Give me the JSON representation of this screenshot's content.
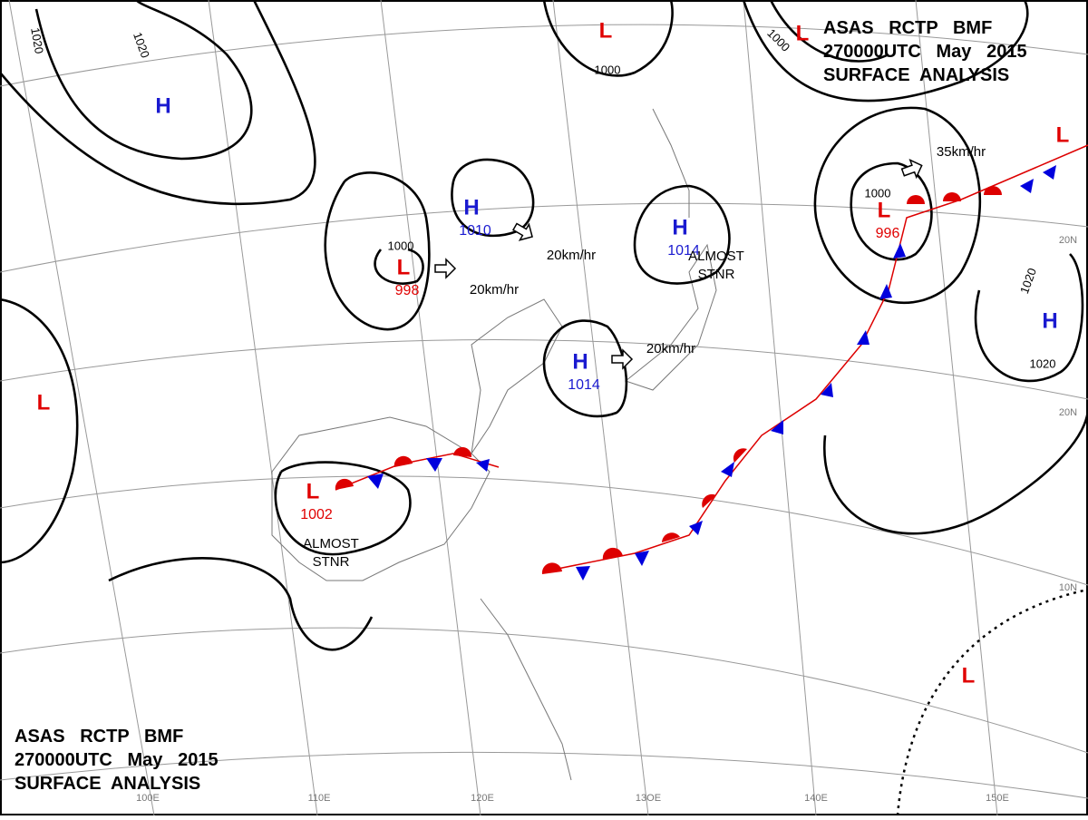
{
  "header": {
    "lines": [
      "ASAS   RCTP   BMF",
      "270000UTC   May   2015",
      "SURFACE  ANALYSIS"
    ]
  },
  "footer": {
    "lines": [
      "ASAS   RCTP   BMF",
      "270000UTC   May   2015",
      "SURFACE  ANALYSIS"
    ]
  },
  "systems": [
    {
      "label": "H"
    },
    {
      "label": "L",
      "value": "998"
    },
    {
      "label": "H",
      "value": "1010"
    },
    {
      "label": "H",
      "value": "1014"
    },
    {
      "label": "H",
      "value": "1014"
    },
    {
      "label": "L",
      "value": "1002"
    },
    {
      "label": "L",
      "value": "996"
    },
    {
      "label": "L"
    },
    {
      "label": "L"
    },
    {
      "label": "L"
    },
    {
      "label": "H"
    },
    {
      "label": "L"
    },
    {
      "label": "L"
    }
  ],
  "isobar_labels": [
    "1020",
    "1020",
    "1000",
    "1000",
    "1000",
    "1000",
    "1020",
    "1020"
  ],
  "motions": [
    "20km/hr",
    "20km/hr",
    "20km/hr",
    "35km/hr"
  ],
  "notes": [
    [
      "ALMOST",
      "STNR"
    ],
    [
      "ALMOST",
      "STNR"
    ]
  ],
  "grid_labels": [
    "100E",
    "110E",
    "120E",
    "13OE",
    "140E",
    "150E",
    "20N",
    "20N",
    "10N"
  ]
}
